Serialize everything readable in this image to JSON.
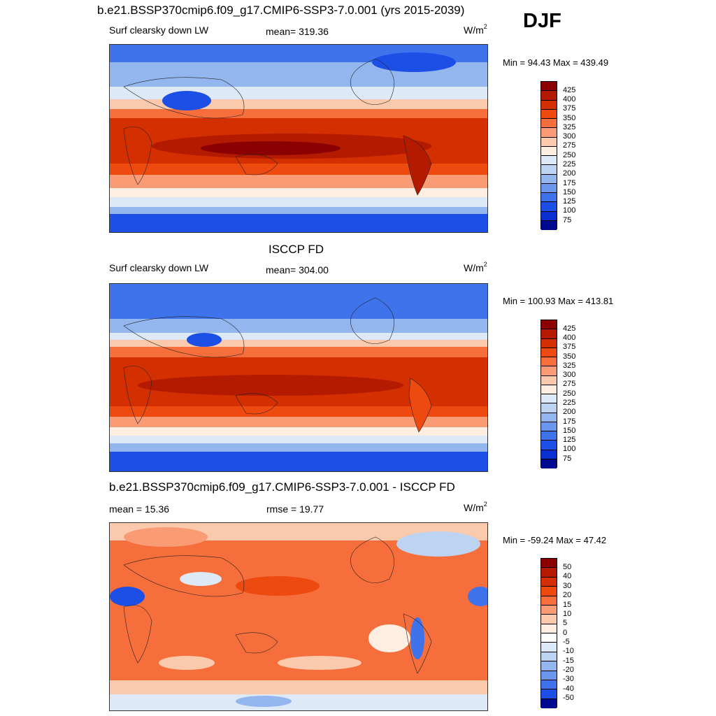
{
  "header": {
    "title": "b.e21.BSSP370cmip6.f09_g17.CMIP6-SSP3-7.0.001 (yrs 2015-2039)",
    "season": "DJF"
  },
  "panels": [
    {
      "title": "",
      "left_label": "Surf clearsky down LW",
      "center_label": "mean= 319.36",
      "units": "W/m",
      "units_sup": "2",
      "minmax": "Min =  94.43 Max = 439.49",
      "colorbar_labels": [
        "425",
        "400",
        "375",
        "350",
        "325",
        "300",
        "275",
        "250",
        "225",
        "200",
        "175",
        "150",
        "125",
        "100",
        "75"
      ]
    },
    {
      "title": "ISCCP FD",
      "left_label": "Surf clearsky down LW",
      "center_label": "mean= 304.00",
      "units": "W/m",
      "units_sup": "2",
      "minmax": "Min = 100.93 Max = 413.81",
      "colorbar_labels": [
        "425",
        "400",
        "375",
        "350",
        "325",
        "300",
        "275",
        "250",
        "225",
        "200",
        "175",
        "150",
        "125",
        "100",
        "75"
      ]
    },
    {
      "title": "b.e21.BSSP370cmip6.f09_g17.CMIP6-SSP3-7.0.001 - ISCCP FD",
      "left_label": "mean =  15.36",
      "center_label": "rmse =  19.77",
      "units": "W/m",
      "units_sup": "2",
      "minmax": "Min = -59.24 Max =  47.42",
      "colorbar_labels": [
        "50",
        "40",
        "30",
        "20",
        "15",
        "10",
        "5",
        "0",
        "-5",
        "-10",
        "-15",
        "-20",
        "-30",
        "-40",
        "-50"
      ]
    }
  ],
  "colors": {
    "abs_scale": [
      "#8b0000",
      "#b31a00",
      "#d42f00",
      "#ee4a10",
      "#f66e3c",
      "#f99c76",
      "#fbcaad",
      "#fdeee1",
      "#dde9f7",
      "#bcd3f2",
      "#94b6ef",
      "#6c97ee",
      "#3f73ec",
      "#1c4fe6",
      "#0a2fd0",
      "#000a90"
    ],
    "diff_scale": [
      "#8b0000",
      "#b31a00",
      "#d42f00",
      "#ee4a10",
      "#f66e3c",
      "#f99c76",
      "#fbcaad",
      "#fdeee1",
      "#ffffff",
      "#dde9f7",
      "#bcd3f2",
      "#94b6ef",
      "#6c97ee",
      "#3f73ec",
      "#1c4fe6",
      "#000a90"
    ]
  }
}
